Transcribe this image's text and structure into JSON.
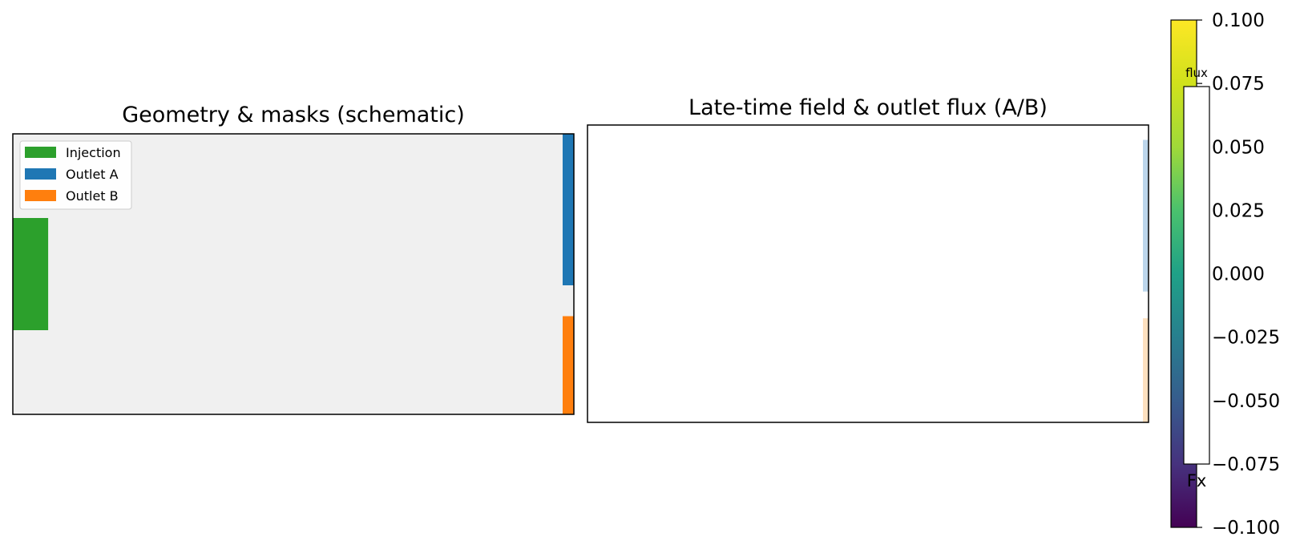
{
  "chart_data": [
    {
      "type": "heatmap",
      "title": "Geometry & masks (schematic)",
      "background_color": "#f0f0f0",
      "legend": {
        "placement": "upper-left",
        "entries": [
          {
            "name": "Injection",
            "color": "#2ca02c"
          },
          {
            "name": "Outlet A",
            "color": "#1f77b4"
          },
          {
            "name": "Outlet B",
            "color": "#ff7f0e"
          }
        ]
      },
      "regions": [
        {
          "name": "Injection",
          "color": "#2ca02c",
          "x": [
            0.0,
            0.063
          ],
          "y": [
            0.3,
            0.7
          ]
        },
        {
          "name": "Outlet A",
          "color": "#1f77b4",
          "x": [
            0.98,
            1.0
          ],
          "y": [
            0.0,
            0.54
          ]
        },
        {
          "name": "Outlet B",
          "color": "#ff7f0e",
          "x": [
            0.98,
            1.0
          ],
          "y": [
            0.65,
            1.0
          ]
        }
      ],
      "grid": false
    },
    {
      "type": "heatmap",
      "title": "Late-time field & outlet flux (A/B)",
      "field_color": "#ffffff",
      "regions": [
        {
          "name": "Outlet A",
          "color": "#bcd6ec",
          "x": [
            0.99,
            1.0
          ],
          "y": [
            0.05,
            0.56
          ]
        },
        {
          "name": "Outlet B",
          "color": "#fde0bf",
          "x": [
            0.99,
            1.0
          ],
          "y": [
            0.65,
            1.0
          ]
        }
      ],
      "inset": {
        "label": "flux"
      },
      "grid": false
    }
  ],
  "colorbar": {
    "label": "Fx",
    "colormap": "viridis",
    "range": [
      -0.1,
      0.1
    ],
    "ticks": [
      "0.100",
      "0.075",
      "0.050",
      "0.025",
      "0.000",
      "−0.025",
      "−0.050",
      "−0.075",
      "−0.100"
    ]
  }
}
